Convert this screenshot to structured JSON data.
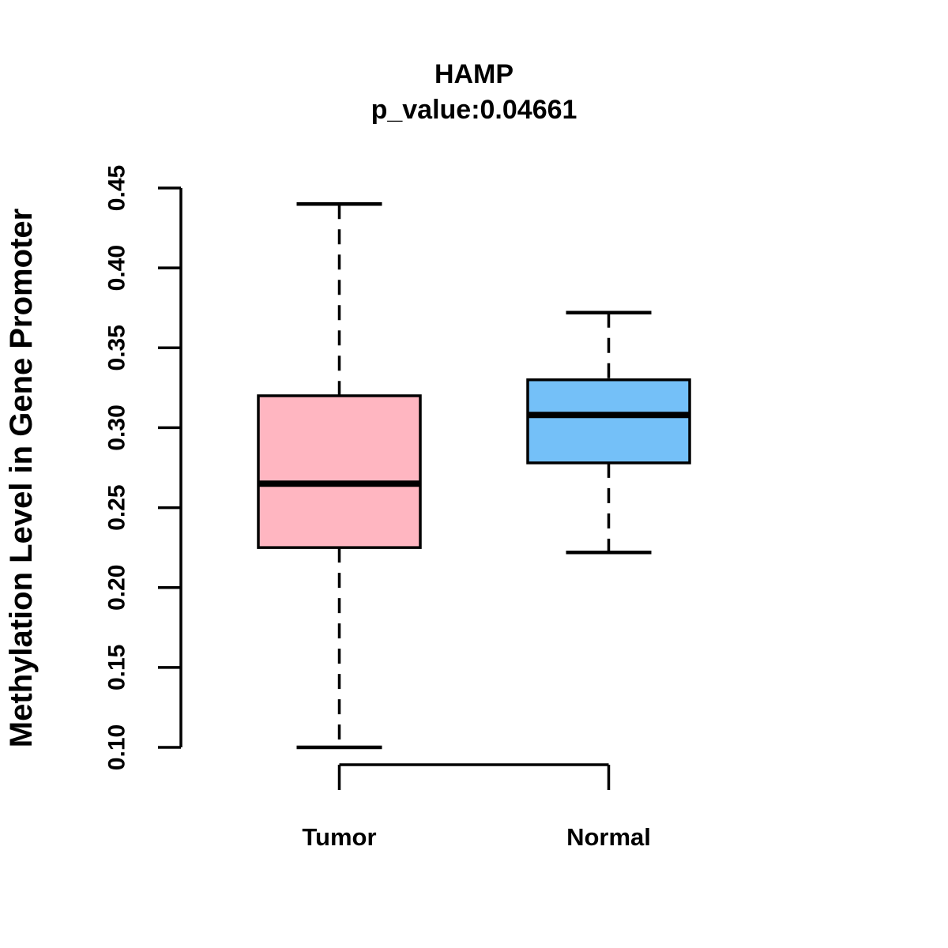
{
  "title": "HAMP",
  "subtitle": "p_value:0.04661",
  "chart_data": {
    "type": "boxplot",
    "title": "HAMP",
    "subtitle": "p_value:0.04661",
    "xlabel": "",
    "ylabel": "Methylation Level in Gene Promoter",
    "categories": [
      "Tumor",
      "Normal"
    ],
    "ylim": [
      0.1,
      0.45
    ],
    "ytick_labels": [
      "0.10",
      "0.15",
      "0.20",
      "0.25",
      "0.30",
      "0.35",
      "0.40",
      "0.45"
    ],
    "grid": false,
    "legend_position": "none",
    "series": [
      {
        "name": "Tumor",
        "fill_color": "#FFB6C1",
        "whisker_low": 0.1,
        "q1": 0.225,
        "median": 0.265,
        "q3": 0.32,
        "whisker_high": 0.44,
        "outliers": []
      },
      {
        "name": "Normal",
        "fill_color": "#74C0F8",
        "whisker_low": 0.222,
        "q1": 0.278,
        "median": 0.308,
        "q3": 0.33,
        "whisker_high": 0.372,
        "outliers": []
      }
    ],
    "stroke_color": "#000000",
    "background_color": "#FFFFFF"
  }
}
